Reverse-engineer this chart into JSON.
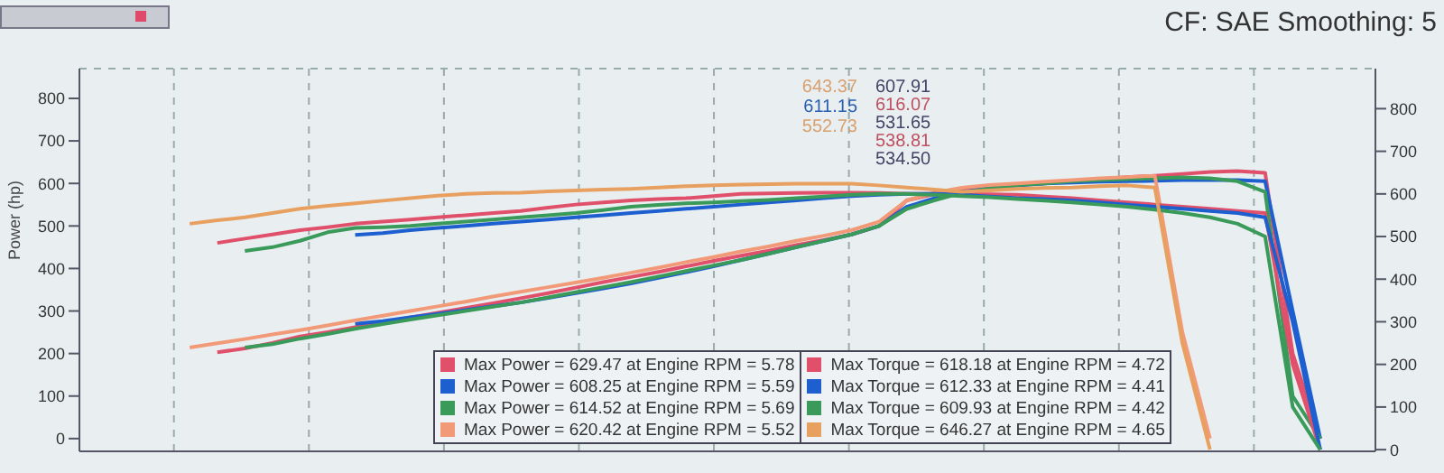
{
  "chart_data": {
    "type": "line",
    "ylabel": "Power (hp)",
    "categories": [
      null,
      null,
      null,
      null,
      null,
      null,
      null,
      null,
      null,
      null,
      null,
      null,
      null,
      null,
      null,
      null,
      null,
      null,
      null,
      null,
      null,
      null,
      null,
      null,
      null,
      null,
      null,
      null,
      null,
      null,
      null,
      null,
      null,
      null,
      null,
      null,
      null,
      null,
      null,
      null,
      null,
      null,
      null,
      null,
      null,
      null,
      null,
      null
    ],
    "series": [
      {
        "name": "Max Power = 629.47 at Engine RPM = 5.78",
        "color": "#e0506a",
        "values": [
          null,
          null,
          null,
          null,
          null,
          203,
          212,
          225,
          240,
          250,
          262,
          273,
          285,
          296,
          307,
          318,
          330,
          342,
          355,
          368,
          380,
          392,
          405,
          418,
          430,
          442,
          455,
          467,
          480,
          500,
          560,
          575,
          585,
          592,
          597,
          600,
          605,
          610,
          615,
          618,
          622,
          627,
          629,
          625,
          200,
          0,
          null,
          null
        ]
      },
      {
        "name": "Max Power = 608.25 at Engine RPM = 5.59",
        "color": "#1e5fd0",
        "values": [
          null,
          null,
          null,
          null,
          null,
          null,
          null,
          null,
          null,
          null,
          270,
          276,
          285,
          293,
          302,
          311,
          320,
          331,
          342,
          353,
          365,
          378,
          391,
          405,
          420,
          435,
          450,
          465,
          480,
          500,
          545,
          565,
          580,
          588,
          595,
          600,
          602,
          604,
          605,
          606,
          608,
          608,
          608,
          605,
          300,
          0,
          null,
          null
        ]
      },
      {
        "name": "Max Power = 614.52 at Engine RPM = 5.69",
        "color": "#3a9a5a",
        "values": [
          null,
          null,
          null,
          null,
          null,
          null,
          214,
          222,
          235,
          246,
          258,
          269,
          280,
          290,
          300,
          310,
          320,
          332,
          344,
          356,
          368,
          381,
          394,
          407,
          420,
          435,
          450,
          465,
          480,
          500,
          540,
          560,
          578,
          588,
          596,
          600,
          605,
          608,
          610,
          612,
          614,
          612,
          605,
          580,
          100,
          0,
          null,
          null
        ]
      },
      {
        "name": "Max Power = 620.42 at Engine RPM = 5.52",
        "color": "#f29a78",
        "values": [
          null,
          null,
          null,
          null,
          214,
          224,
          234,
          245,
          255,
          266,
          278,
          289,
          300,
          311,
          322,
          334,
          345,
          356,
          367,
          378,
          390,
          402,
          415,
          427,
          440,
          452,
          465,
          477,
          490,
          510,
          560,
          578,
          590,
          596,
          600,
          604,
          608,
          612,
          615,
          618,
          250,
          0,
          null,
          null,
          null,
          null,
          null,
          null
        ]
      },
      {
        "name": "Max Torque = 618.18 at Engine RPM = 4.72",
        "color": "#e0506a",
        "axis": "y2",
        "values": [
          null,
          null,
          null,
          null,
          null,
          485,
          495,
          505,
          515,
          522,
          530,
          535,
          540,
          545,
          550,
          555,
          560,
          568,
          575,
          580,
          585,
          588,
          590,
          595,
          600,
          601,
          602,
          603,
          603,
          602,
          600,
          600,
          600,
          599,
          598,
          594,
          590,
          585,
          580,
          575,
          570,
          565,
          560,
          555,
          200,
          0,
          null,
          null
        ]
      },
      {
        "name": "Max Torque = 612.33 at Engine RPM = 4.41",
        "color": "#1e5fd0",
        "axis": "y2",
        "values": [
          null,
          null,
          null,
          null,
          null,
          null,
          null,
          null,
          null,
          null,
          504,
          508,
          515,
          520,
          525,
          530,
          535,
          540,
          545,
          550,
          555,
          560,
          565,
          570,
          575,
          580,
          585,
          590,
          595,
          598,
          600,
          600,
          598,
          594,
          590,
          588,
          585,
          580,
          575,
          570,
          565,
          560,
          555,
          545,
          300,
          0,
          null,
          null
        ]
      },
      {
        "name": "Max Torque = 609.93 at Engine RPM = 4.42",
        "color": "#3a9a5a",
        "axis": "y2",
        "values": [
          null,
          null,
          null,
          null,
          null,
          null,
          466,
          475,
          490,
          510,
          520,
          522,
          525,
          530,
          535,
          540,
          545,
          550,
          555,
          562,
          570,
          574,
          578,
          580,
          583,
          586,
          590,
          594,
          598,
          600,
          600,
          598,
          595,
          592,
          588,
          584,
          580,
          575,
          570,
          563,
          555,
          545,
          530,
          500,
          100,
          0,
          null,
          null
        ]
      },
      {
        "name": "Max Torque = 646.27 at Engine RPM = 4.65",
        "color": "#e8a060",
        "axis": "y2",
        "values": [
          null,
          null,
          null,
          null,
          530,
          538,
          545,
          555,
          565,
          572,
          578,
          584,
          590,
          596,
          600,
          602,
          603,
          606,
          608,
          610,
          612,
          615,
          618,
          620,
          622,
          623,
          624,
          624,
          624,
          620,
          615,
          610,
          605,
          608,
          612,
          614,
          615,
          618,
          620,
          615,
          250,
          0,
          null,
          null,
          null,
          null,
          null,
          null
        ]
      }
    ],
    "ylim": [
      -30,
      870
    ],
    "yticks": [
      0,
      100,
      200,
      300,
      400,
      500,
      600,
      700,
      800
    ],
    "y2lim": [
      -4,
      894
    ],
    "y2ticks": [
      0,
      100,
      200,
      300,
      400,
      500,
      600,
      700,
      800
    ],
    "tick_labels": "y",
    "grid": true,
    "legend": "bottom",
    "line_style": "solid",
    "annotations": [
      "CF: SAE Smoothing: 5",
      "643.37",
      "607.91",
      "611.15",
      "616.07",
      "552.73",
      "531.65",
      "538.81",
      "534.50"
    ]
  }
}
